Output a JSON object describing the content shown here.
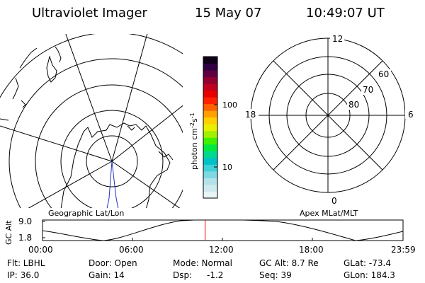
{
  "header": {
    "instrument": "Ultraviolet Imager",
    "date": "15 May 07",
    "time": "10:49:07 UT"
  },
  "colorbar": {
    "unit_label": "photon cm",
    "unit_exp1": "-2",
    "unit_mid": "s",
    "unit_exp2": "-1",
    "tick_100": "100",
    "tick_10": "10",
    "scale": "log",
    "colors": [
      "#e8f4f6",
      "#cfeaee",
      "#b4e2e8",
      "#7fd8e2",
      "#3fd0d8",
      "#00c0c8",
      "#00d890",
      "#00e840",
      "#40f000",
      "#a0f000",
      "#e8f000",
      "#ffd000",
      "#ffa000",
      "#ff6000",
      "#ff2000",
      "#e80000",
      "#c00020",
      "#900030",
      "#600040",
      "#300040",
      "#100018"
    ]
  },
  "geo_panel": {
    "caption": "Geographic Lat/Lon"
  },
  "mag_panel": {
    "caption": "Apex MLat/MLT",
    "mlt_labels": {
      "top": "12",
      "right": "6",
      "bottom": "0",
      "left": "18"
    },
    "lat_labels": [
      "60",
      "70",
      "80"
    ]
  },
  "altitude_plot": {
    "ylabel": "GC Alt",
    "y_ticks": [
      "9.0",
      "1.8"
    ],
    "x_ticks": [
      "00:00",
      "06:00",
      "12:00",
      "18:00",
      "23:59"
    ],
    "current_time_fraction": 0.4511,
    "marker_color": "#ff0000"
  },
  "info": {
    "row1": {
      "filter": "Flt: LBHL",
      "door": "Door: Open",
      "mode": "Mode: Normal",
      "gc_alt": "GC Alt: 8.7 Re",
      "glat": "GLat: -73.4"
    },
    "row2": {
      "ip": "IP: 36.0",
      "gain": "Gain: 14",
      "dsp_label": "Dsp:",
      "dsp_value": "-1.2",
      "seq": "Seq: 39",
      "glon": "GLon: 184.3"
    }
  }
}
